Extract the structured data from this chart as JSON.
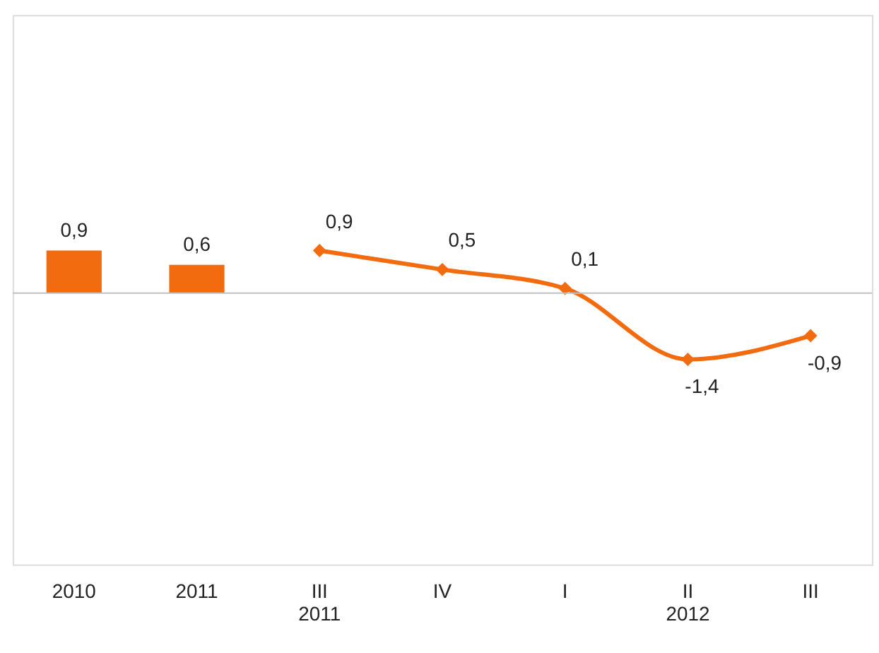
{
  "chart_data": {
    "type": "bar",
    "categories": [
      "2010",
      "2011",
      "III\n2011",
      "IV",
      "I",
      "II\n2012",
      "III"
    ],
    "series": [
      {
        "color": "#f26b0f",
        "values": [
          0.9,
          0.6,
          null,
          null,
          null,
          null,
          null
        ],
        "value_labels": [
          "0,9",
          "0,6",
          null,
          null,
          null,
          null,
          null
        ]
      },
      {
        "type": "line",
        "color": "#f26b0f",
        "marker": "diamond",
        "line_style": "solid",
        "values": [
          null,
          null,
          0.9,
          0.5,
          0.1,
          -1.4,
          -0.9
        ],
        "value_labels": [
          null,
          null,
          "0,9",
          "0,5",
          "0,1",
          "-1,4",
          "-0,9"
        ]
      }
    ],
    "tick_labels": "x",
    "grid": false
  }
}
